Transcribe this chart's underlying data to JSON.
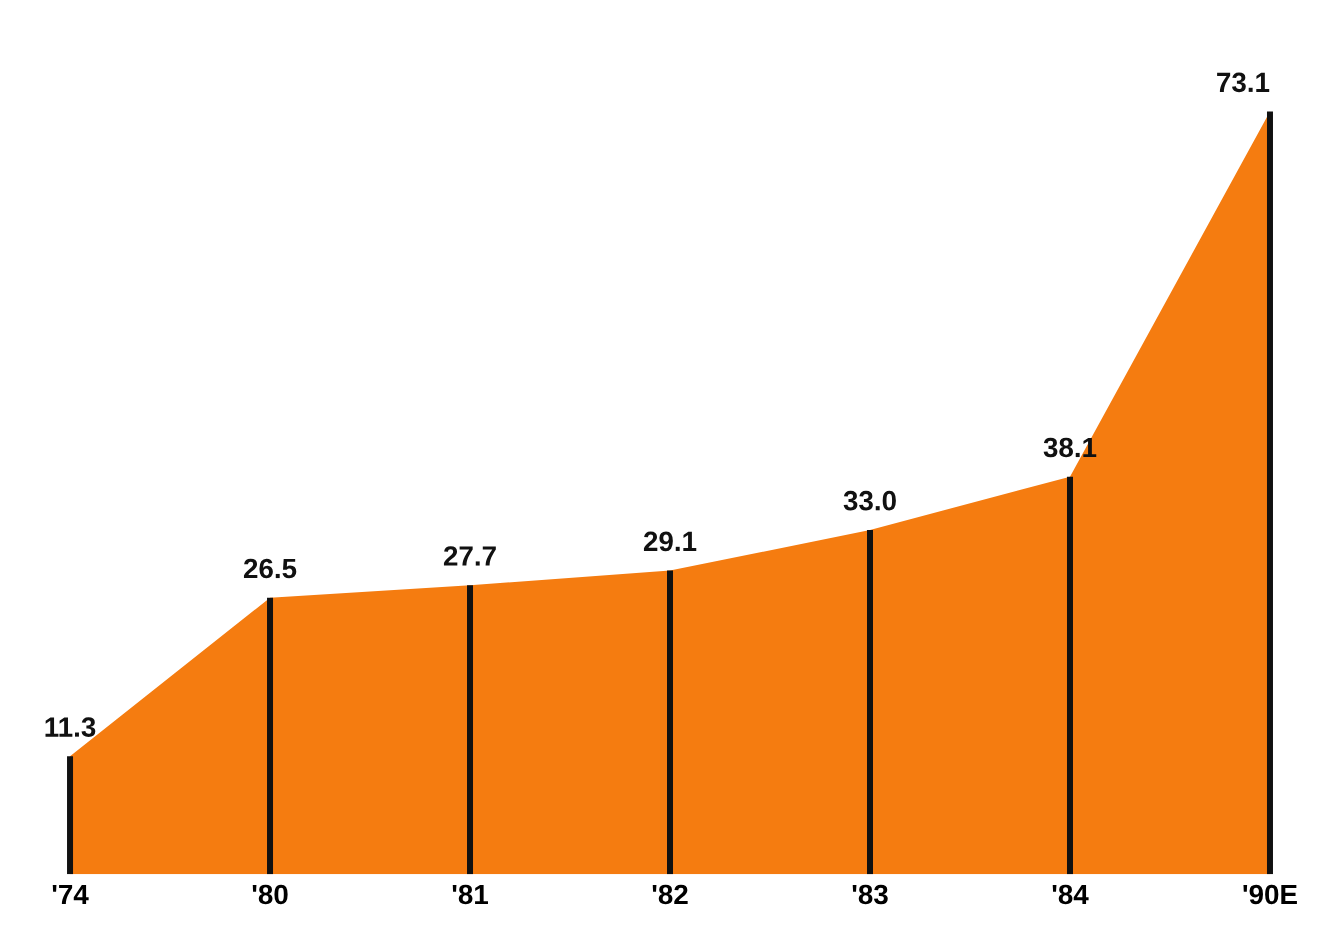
{
  "chart_data": {
    "type": "area",
    "categories": [
      "'74",
      "'80",
      "'81",
      "'82",
      "'83",
      "'84",
      "'90E"
    ],
    "series": [
      {
        "color": "#f57c10",
        "values": [
          11.3,
          26.5,
          27.7,
          29.1,
          33.0,
          38.1,
          73.1
        ]
      },
      {
        "type": "bar",
        "color": "#111111",
        "values": [
          11.3,
          26.5,
          27.7,
          29.1,
          33.0,
          38.1,
          73.1
        ],
        "value_labels": [
          "11.3",
          "26.5",
          "27.7",
          "29.1",
          "33.0",
          "38.1",
          "73.1"
        ]
      }
    ],
    "grid": false,
    "legend": false
  }
}
